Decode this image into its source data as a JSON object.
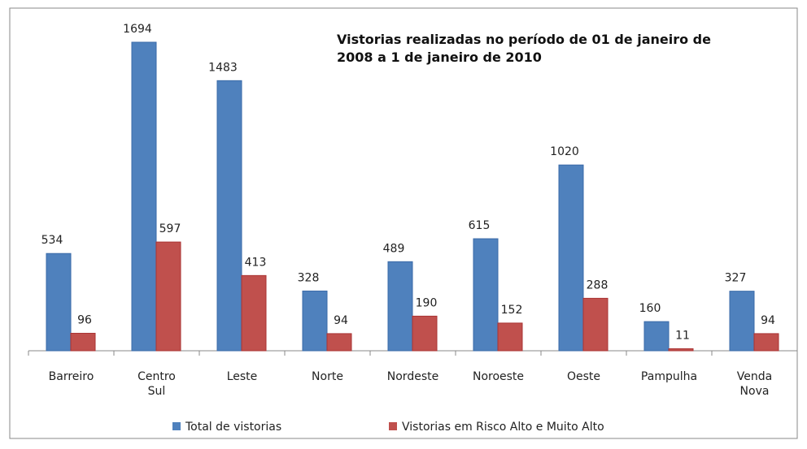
{
  "chart_data": {
    "type": "bar",
    "title": "Vistorias realizadas no período de 01 de janeiro de 2008 a 1 de janeiro de 2010",
    "categories": [
      "Barreiro",
      "Centro Sul",
      "Leste",
      "Norte",
      "Nordeste",
      "Noroeste",
      "Oeste",
      "Pampulha",
      "Venda Nova"
    ],
    "series": [
      {
        "name": "Total de vistorias",
        "color": "#4f81bd",
        "values": [
          534,
          1694,
          1483,
          328,
          489,
          615,
          1020,
          160,
          327
        ]
      },
      {
        "name": "Vistorias em Risco Alto e Muito Alto",
        "color": "#c0504d",
        "values": [
          96,
          597,
          413,
          94,
          190,
          152,
          288,
          11,
          94
        ]
      }
    ],
    "legend": "bottom"
  }
}
